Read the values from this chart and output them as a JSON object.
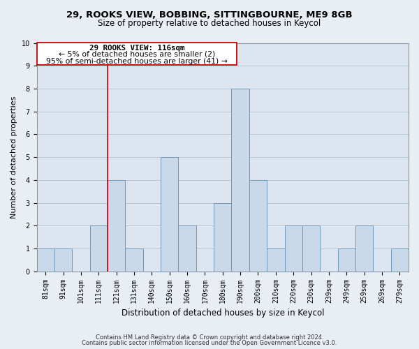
{
  "title1": "29, ROOKS VIEW, BOBBING, SITTINGBOURNE, ME9 8GB",
  "title2": "Size of property relative to detached houses in Keycol",
  "xlabel": "Distribution of detached houses by size in Keycol",
  "ylabel": "Number of detached properties",
  "categories": [
    "81sqm",
    "91sqm",
    "101sqm",
    "111sqm",
    "121sqm",
    "131sqm",
    "140sqm",
    "150sqm",
    "160sqm",
    "170sqm",
    "180sqm",
    "190sqm",
    "200sqm",
    "210sqm",
    "220sqm",
    "230sqm",
    "239sqm",
    "249sqm",
    "259sqm",
    "269sqm",
    "279sqm"
  ],
  "values": [
    1,
    1,
    0,
    2,
    4,
    1,
    0,
    5,
    2,
    0,
    3,
    8,
    4,
    1,
    2,
    2,
    0,
    1,
    2,
    0,
    1
  ],
  "bar_color": "#c9d9ea",
  "bar_edge_color": "#7098b8",
  "vline_color": "#cc0000",
  "vline_x": 3.5,
  "ylim": [
    0,
    10
  ],
  "anno_line1": "29 ROOKS VIEW: 116sqm",
  "anno_line2": "← 5% of detached houses are smaller (2)",
  "anno_line3": "95% of semi-detached houses are larger (41) →",
  "footer1": "Contains HM Land Registry data © Crown copyright and database right 2024.",
  "footer2": "Contains public sector information licensed under the Open Government Licence v3.0.",
  "bg_color": "#e8eef4",
  "plot_bg_color": "#dde6f0",
  "grid_color": "#b8c8d8",
  "title_fontsize": 9.5,
  "subtitle_fontsize": 8.5,
  "xlabel_fontsize": 8.5,
  "ylabel_fontsize": 8.0,
  "tick_fontsize": 7.0,
  "anno_fontsize": 7.8,
  "footer_fontsize": 6.0
}
